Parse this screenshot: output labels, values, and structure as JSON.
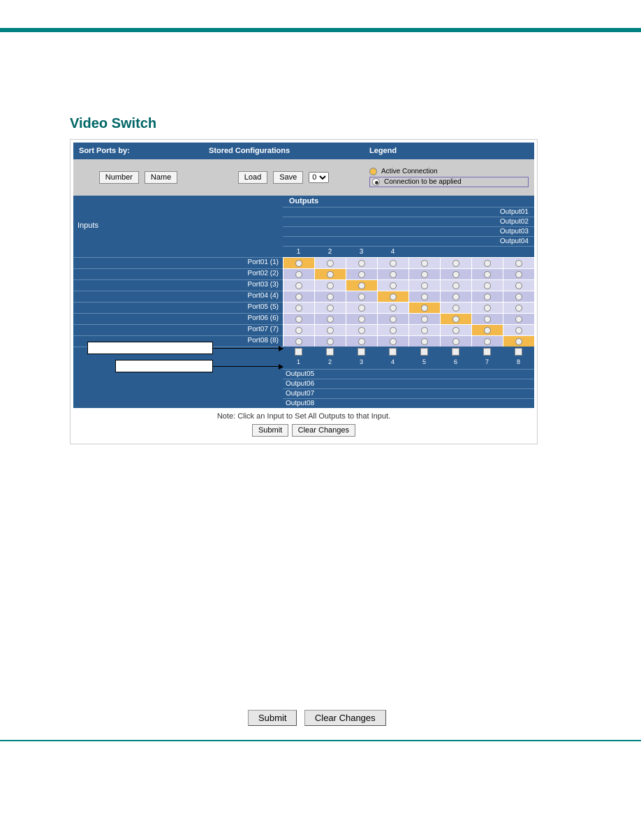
{
  "page": {
    "title": "Video Switch"
  },
  "headers": {
    "sort": "Sort Ports by:",
    "stored": "Stored Configurations",
    "legend": "Legend"
  },
  "sort": {
    "number_btn": "Number",
    "name_btn": "Name"
  },
  "stored": {
    "load_btn": "Load",
    "save_btn": "Save",
    "options": [
      "0"
    ]
  },
  "legend": {
    "active": "Active Connection",
    "pending": "Connection to be applied"
  },
  "matrix": {
    "outputs_title": "Outputs",
    "inputs_title": "Inputs",
    "top_output_labels": [
      "Output01",
      "Output02",
      "Output03",
      "Output04"
    ],
    "col_numbers": [
      "1",
      "2",
      "3",
      "4",
      "",
      "",
      "",
      ""
    ],
    "ports": [
      {
        "label": "Port01 (1)",
        "active_col": 0
      },
      {
        "label": "Port02 (2)",
        "active_col": 1
      },
      {
        "label": "Port03 (3)",
        "active_col": 2
      },
      {
        "label": "Port04 (4)",
        "active_col": 3
      },
      {
        "label": "Port05 (5)",
        "active_col": 4
      },
      {
        "label": "Port06 (6)",
        "active_col": 5
      },
      {
        "label": "Port07 (7)",
        "active_col": 6
      },
      {
        "label": "Port08 (8)",
        "active_col": 7
      }
    ],
    "mute_numbers": [
      "1",
      "2",
      "3",
      "4",
      "5",
      "6",
      "7",
      "8"
    ],
    "bottom_output_labels": [
      "Output05",
      "Output06",
      "Output07",
      "Output08"
    ],
    "alt_row_bg": "#c3c3e6",
    "row_bg": "#d7d7ef",
    "active_bg": "#f3b94a",
    "header_bg": "#2a5c90"
  },
  "note": "Note: Click an Input to Set All Outputs to that Input.",
  "actions": {
    "submit": "Submit",
    "clear": "Clear Changes"
  },
  "bottom_buttons": {
    "submit": "Submit",
    "clear": "Clear Changes"
  }
}
